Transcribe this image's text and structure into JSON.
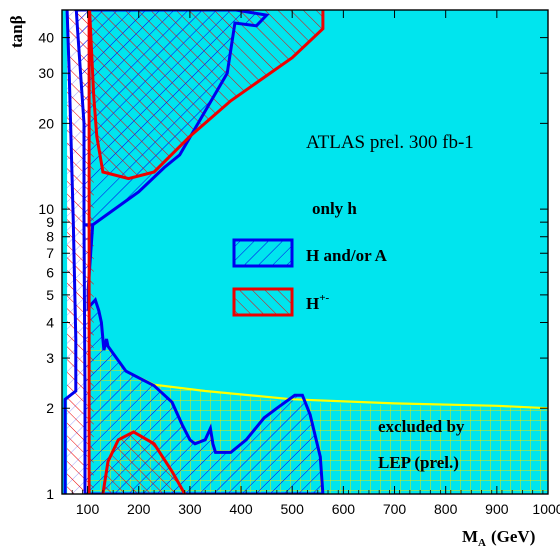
{
  "chart_data": {
    "type": "area",
    "title": "",
    "xlabel_main": "M",
    "xlabel_sub": "A",
    "xlabel_unit": "(GeV)",
    "ylabel_main": "tan",
    "ylabel_greek": "β",
    "xlim": [
      50,
      1000
    ],
    "ylim": [
      1,
      50
    ],
    "y_scale": "log",
    "x_ticks": [
      100,
      200,
      300,
      400,
      500,
      600,
      700,
      800,
      900,
      1000
    ],
    "x_tick_labels": [
      "100",
      "200",
      "300",
      "400",
      "500",
      "600",
      "700",
      "800",
      "900",
      "1000"
    ],
    "y_ticks": [
      1,
      2,
      3,
      4,
      5,
      6,
      7,
      8,
      9,
      10,
      20,
      30,
      40
    ],
    "y_tick_labels": [
      "1",
      "2",
      "3",
      "4",
      "5",
      "6",
      "7",
      "8",
      "9",
      "10",
      "20",
      "30",
      "40"
    ],
    "annotation": "ATLAS prel. 300 fb-1",
    "legend_items": [
      {
        "label": "only h",
        "color": "#000000"
      },
      {
        "label": "H and/or A",
        "color": "#0000dd"
      },
      {
        "label": "H",
        "sup": "+-",
        "color": "#dd0000"
      }
    ],
    "lep_label_line1": "excluded by",
    "lep_label_line2": "LEP (prel.)",
    "colors": {
      "background": "#00e5ee",
      "h_contour": "#0000ee",
      "charged_contour": "#ee0000",
      "lep_boundary": "#ffff00",
      "lep_hatch": "#e8e800"
    },
    "regions": {
      "h_or_a_upper": [
        [
          93,
          8.8
        ],
        [
          93,
          20
        ],
        [
          80,
          44
        ],
        [
          78,
          50
        ],
        [
          390,
          50
        ],
        [
          450,
          48
        ],
        [
          430,
          44
        ],
        [
          388,
          45
        ],
        [
          373,
          30
        ],
        [
          280,
          15.5
        ],
        [
          250,
          14
        ],
        [
          200,
          11.5
        ],
        [
          110,
          8.8
        ],
        [
          93,
          8.8
        ]
      ],
      "h_or_a_middle": [
        [
          93,
          8.8
        ],
        [
          110,
          8.8
        ],
        [
          101,
          5.2
        ],
        [
          101,
          4.5
        ],
        [
          115,
          4.8
        ],
        [
          122,
          4.4
        ],
        [
          127,
          4.0
        ],
        [
          132,
          3.2
        ],
        [
          137,
          3.5
        ],
        [
          140,
          3.3
        ],
        [
          175,
          2.7
        ],
        [
          230,
          2.4
        ],
        [
          265,
          2.1
        ],
        [
          285,
          1.75
        ],
        [
          300,
          1.55
        ],
        [
          310,
          1.5
        ],
        [
          330,
          1.55
        ],
        [
          340,
          1.7
        ],
        [
          345,
          1.5
        ],
        [
          350,
          1.4
        ],
        [
          380,
          1.4
        ],
        [
          410,
          1.55
        ],
        [
          445,
          1.85
        ],
        [
          470,
          2.0
        ],
        [
          505,
          2.22
        ],
        [
          520,
          2.22
        ],
        [
          535,
          1.9
        ],
        [
          555,
          1.35
        ],
        [
          560,
          1.0
        ],
        [
          95,
          1.0
        ],
        [
          95,
          2.2
        ],
        [
          93,
          8.8
        ]
      ],
      "h_or_a_outline": [
        [
          56,
          1.0
        ],
        [
          56,
          2.15
        ],
        [
          77,
          2.3
        ],
        [
          77,
          3.5
        ],
        [
          72,
          9.0
        ],
        [
          64,
          30
        ],
        [
          60,
          50
        ]
      ],
      "hpm_upper": [
        [
          104,
          50
        ],
        [
          112,
          25
        ],
        [
          118,
          18
        ],
        [
          130,
          13.5
        ],
        [
          180,
          12.8
        ],
        [
          230,
          13.5
        ],
        [
          300,
          18
        ],
        [
          380,
          24
        ],
        [
          500,
          34
        ],
        [
          560,
          43
        ],
        [
          560,
          50
        ],
        [
          104,
          50
        ]
      ],
      "hpm_lower": [
        [
          130,
          1.0
        ],
        [
          140,
          1.3
        ],
        [
          160,
          1.55
        ],
        [
          190,
          1.65
        ],
        [
          230,
          1.5
        ],
        [
          265,
          1.2
        ],
        [
          290,
          1.0
        ],
        [
          130,
          1.0
        ]
      ],
      "hpm_band": [
        [
          103,
          1.0
        ],
        [
          103,
          50
        ],
        [
          112,
          50
        ],
        [
          112,
          1.0
        ]
      ],
      "lep_excluded": [
        [
          60,
          1.0
        ],
        [
          60,
          50
        ],
        [
          103,
          50
        ],
        [
          103,
          1.0
        ]
      ],
      "lep_hatched_low": [
        [
          103,
          1.0
        ],
        [
          103,
          3.2
        ],
        [
          140,
          3.3
        ],
        [
          175,
          2.7
        ],
        [
          230,
          2.42
        ],
        [
          330,
          2.3
        ],
        [
          500,
          2.1
        ],
        [
          700,
          2.05
        ],
        [
          900,
          2.02
        ],
        [
          1000,
          2.0
        ],
        [
          1000,
          1.0
        ],
        [
          103,
          1.0
        ]
      ],
      "lep_boundary": [
        [
          140,
          3.3
        ],
        [
          175,
          2.7
        ],
        [
          230,
          2.42
        ],
        [
          330,
          2.3
        ],
        [
          500,
          2.15
        ],
        [
          700,
          2.08
        ],
        [
          900,
          2.04
        ],
        [
          1000,
          2.0
        ]
      ]
    }
  }
}
